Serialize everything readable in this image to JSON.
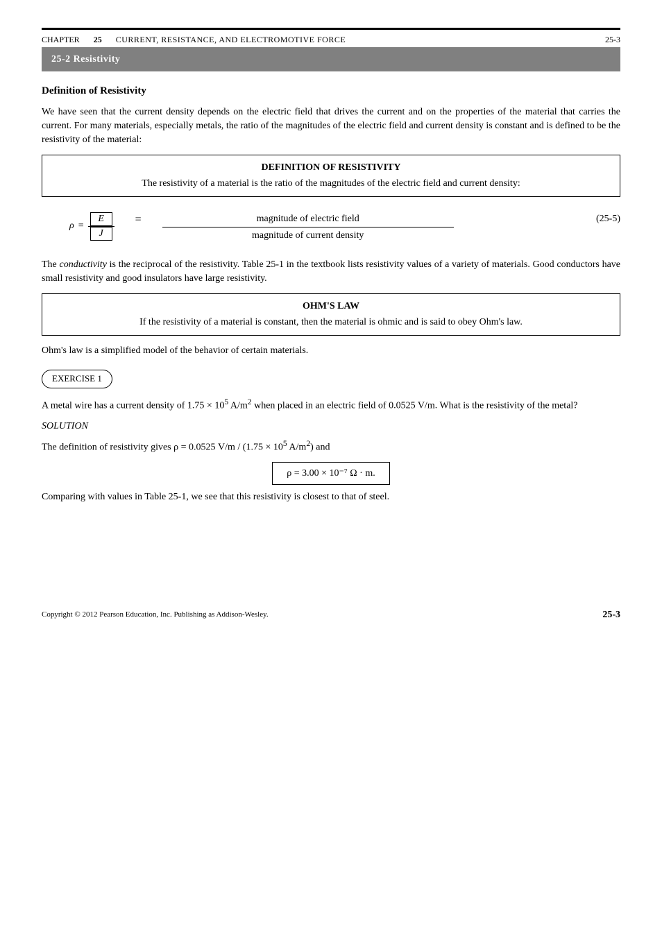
{
  "header": {
    "chapter_label": "CHAPTER",
    "chapter_num": "25",
    "book_part": "CURRENT, RESISTANCE, AND ELECTROMOTIVE FORCE",
    "page": "25-3"
  },
  "section_bar": "25-2   Resistivity",
  "subheading1": "Definition of Resistivity",
  "para1": "We have seen that the current density depends on the electric field that drives the current and on the properties of the material that carries the current. For many materials, especially metals, the ratio of the magnitudes of the electric field and current density is constant and is defined to be the resistivity of the material:",
  "defbox1": {
    "title": "DEFINITION OF RESISTIVITY",
    "body": "The resistivity of a material is the ratio of the magnitudes of the electric field and current density:"
  },
  "form1": {
    "rho": "ρ",
    "eq_mid": "=",
    "E": "E",
    "J": "J",
    "r_num": "magnitude of electric field",
    "r_den": "magnitude of current density",
    "eqnum": "(25-5)"
  },
  "para2_parts": {
    "a": "The ",
    "b": "conductivity",
    "c": " is the reciprocal of the resistivity. Table 25-1 in the textbook lists resistivity values of a variety of materials. Good conductors have small resistivity and good insulators have large resistivity."
  },
  "defbox2": {
    "title": "OHM'S LAW",
    "body": "If the resistivity of a material is constant, then the material is ohmic and is said to obey Ohm's law."
  },
  "para3": "Ohm's law is a simplified model of the behavior of certain materials.",
  "example_label": "EXERCISE 1",
  "example_body_parts": {
    "a": "A metal wire has a current density of 1.75 × 10",
    "a_sup": "5",
    "b": " A/m",
    "b_sup": "2",
    "c": " when placed in an electric field of 0.0525 V/m. What is the resistivity of the metal?"
  },
  "solution_label": "SOLUTION",
  "sol_line1_parts": {
    "a": "The definition of resistivity gives ρ = 0.0525 V/m / (1.75 × 10",
    "a_sup": "5",
    "b": " A/m",
    "b_sup": "2",
    "c": ") and"
  },
  "eq_box": "ρ = 3.00 × 10⁻⁷ Ω · m.",
  "sol_line2": "Comparing with values in Table 25-1, we see that this resistivity is closest to that of steel.",
  "footer": {
    "left": "Copyright © 2012 Pearson Education, Inc. Publishing as Addison-Wesley.",
    "right": "25-3"
  }
}
